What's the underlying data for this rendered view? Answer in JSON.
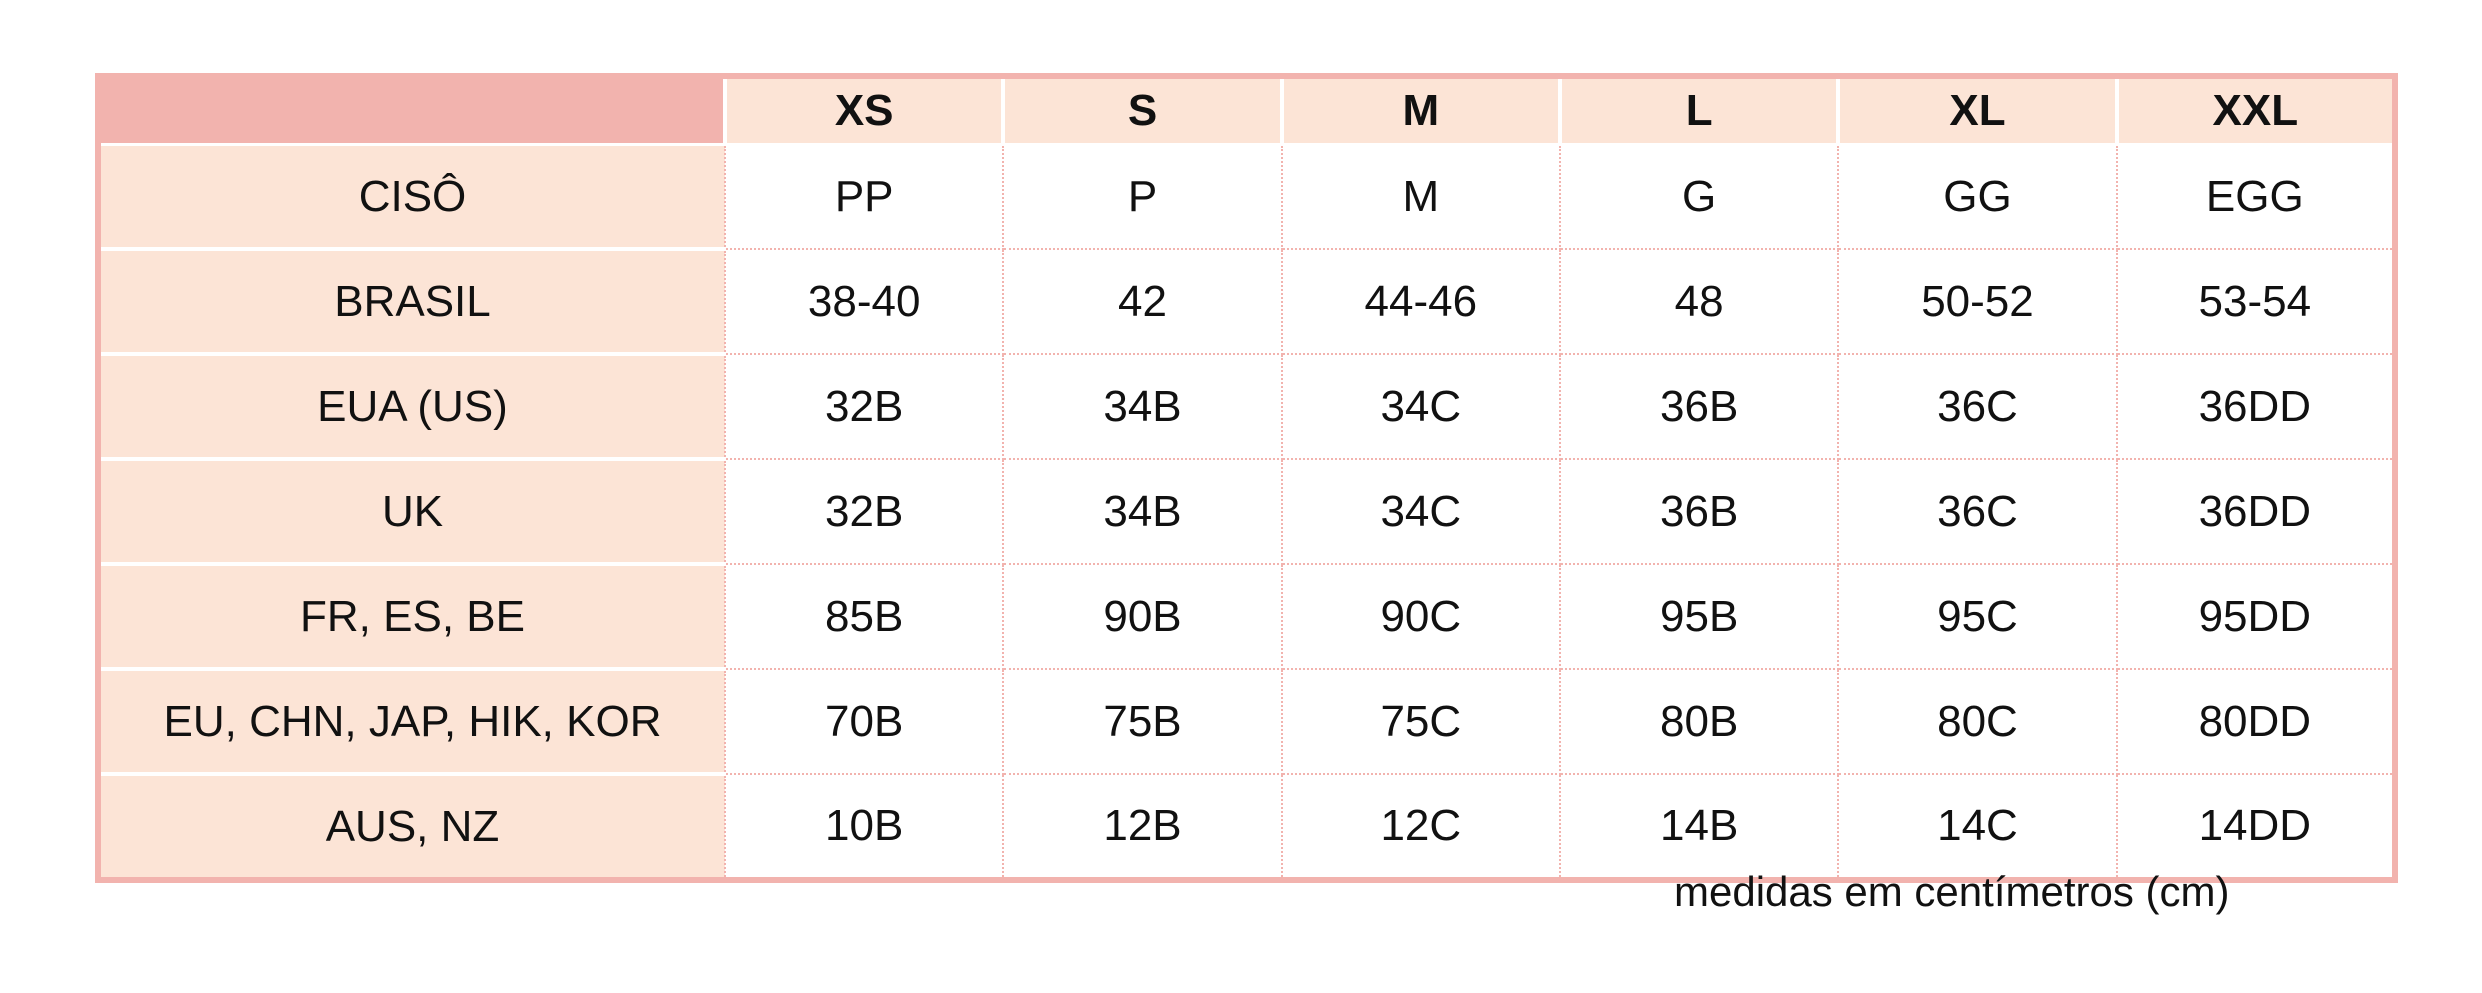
{
  "table": {
    "columns": [
      "XS",
      "S",
      "M",
      "L",
      "XL",
      "XXL"
    ],
    "rows": [
      {
        "label": "CISÔ",
        "values": [
          "PP",
          "P",
          "M",
          "G",
          "GG",
          "EGG"
        ]
      },
      {
        "label": "BRASIL",
        "values": [
          "38-40",
          "42",
          "44-46",
          "48",
          "50-52",
          "53-54"
        ]
      },
      {
        "label": "EUA (US)",
        "values": [
          "32B",
          "34B",
          "34C",
          "36B",
          "36C",
          "36DD"
        ]
      },
      {
        "label": "UK",
        "values": [
          "32B",
          "34B",
          "34C",
          "36B",
          "36C",
          "36DD"
        ]
      },
      {
        "label": "FR, ES, BE",
        "values": [
          "85B",
          "90B",
          "90C",
          "95B",
          "95C",
          "95DD"
        ]
      },
      {
        "label": "EU, CHN, JAP, HIK, KOR",
        "values": [
          "70B",
          "75B",
          "75C",
          "80B",
          "80C",
          "80DD"
        ]
      },
      {
        "label": "AUS, NZ",
        "values": [
          "10B",
          "12B",
          "12C",
          "14B",
          "14C",
          "14DD"
        ]
      }
    ]
  },
  "note": "medidas em centímetros (cm)"
}
